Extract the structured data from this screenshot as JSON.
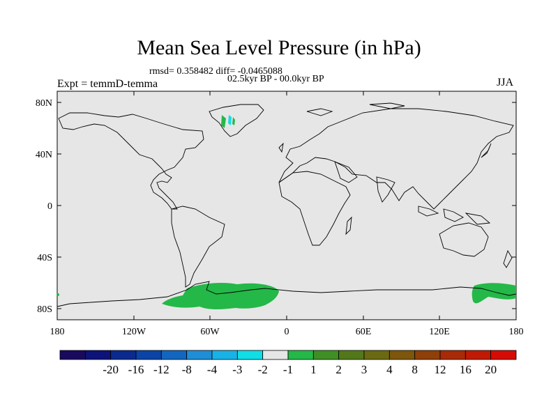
{
  "title": "Mean Sea Level Pressure (in hPa)",
  "stats": "rmsd= 0.358482 diff= -0.0465088",
  "period": "02.5kyr BP - 00.0kyr BP",
  "experiment": "Expt = temmD-temma",
  "season": "JJA",
  "lat_labels": [
    "80N",
    "40N",
    "0",
    "40S",
    "80S"
  ],
  "lon_labels": [
    "180",
    "120W",
    "60W",
    "0",
    "60E",
    "120E",
    "180"
  ],
  "colorbar": {
    "colors": [
      "#1a0a5e",
      "#0d1378",
      "#0a2a8e",
      "#0a44a6",
      "#1266c0",
      "#1e8ed6",
      "#18b2e6",
      "#10dde6",
      "#e6e6e6",
      "#24b848",
      "#3f8f25",
      "#53781a",
      "#6b6a12",
      "#7e560c",
      "#8f3f08",
      "#a82a06",
      "#c01a04",
      "#d60c04"
    ],
    "labels": [
      "-20",
      "-16",
      "-12",
      "-8",
      "-4",
      "-3",
      "-2",
      "-1",
      "1",
      "2",
      "3",
      "4",
      "8",
      "12",
      "16",
      "20"
    ]
  },
  "colors": {
    "background": "#e6e6e6",
    "coast": "#000000",
    "positive": "#24b848",
    "cyan": "#10dde6"
  }
}
